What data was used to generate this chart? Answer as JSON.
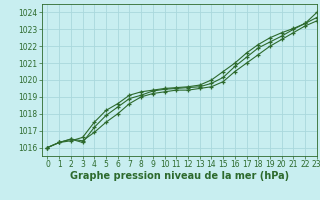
{
  "title": "Graphe pression niveau de la mer (hPa)",
  "background_color": "#c8eef0",
  "plot_bg_color": "#c8eef0",
  "grid_color": "#aad8dc",
  "line_color": "#2d6a2d",
  "marker_color": "#2d6a2d",
  "xlim": [
    -0.5,
    23
  ],
  "ylim": [
    1015.5,
    1024.5
  ],
  "yticks": [
    1016,
    1017,
    1018,
    1019,
    1020,
    1021,
    1022,
    1023,
    1024
  ],
  "xticks": [
    0,
    1,
    2,
    3,
    4,
    5,
    6,
    7,
    8,
    9,
    10,
    11,
    12,
    13,
    14,
    15,
    16,
    17,
    18,
    19,
    20,
    21,
    22,
    23
  ],
  "line1_x": [
    0,
    1,
    2,
    3,
    4,
    5,
    6,
    7,
    8,
    9,
    10,
    11,
    12,
    13,
    14,
    15,
    16,
    17,
    18,
    19,
    20,
    21,
    22,
    23
  ],
  "line1_y": [
    1016.0,
    1016.3,
    1016.5,
    1016.4,
    1016.9,
    1017.5,
    1018.0,
    1018.6,
    1019.0,
    1019.2,
    1019.3,
    1019.4,
    1019.4,
    1019.5,
    1019.6,
    1019.9,
    1020.5,
    1021.0,
    1021.5,
    1022.0,
    1022.4,
    1022.8,
    1023.2,
    1023.5
  ],
  "line2_x": [
    0,
    1,
    2,
    3,
    4,
    5,
    6,
    7,
    8,
    9,
    10,
    11,
    12,
    13,
    14,
    15,
    16,
    17,
    18,
    19,
    20,
    21,
    22,
    23
  ],
  "line2_y": [
    1016.0,
    1016.3,
    1016.5,
    1016.3,
    1017.2,
    1017.9,
    1018.4,
    1018.9,
    1019.1,
    1019.35,
    1019.45,
    1019.5,
    1019.55,
    1019.6,
    1019.8,
    1020.15,
    1020.8,
    1021.35,
    1021.9,
    1022.25,
    1022.6,
    1023.0,
    1023.35,
    1023.7
  ],
  "line3_x": [
    0,
    1,
    2,
    3,
    4,
    5,
    6,
    7,
    8,
    9,
    10,
    11,
    12,
    13,
    14,
    15,
    16,
    17,
    18,
    19,
    20,
    21,
    22,
    23
  ],
  "line3_y": [
    1016.0,
    1016.3,
    1016.4,
    1016.6,
    1017.5,
    1018.2,
    1018.6,
    1019.1,
    1019.3,
    1019.4,
    1019.5,
    1019.55,
    1019.6,
    1019.7,
    1020.0,
    1020.5,
    1021.0,
    1021.6,
    1022.1,
    1022.5,
    1022.8,
    1023.05,
    1023.35,
    1024.0
  ],
  "font_color": "#2d6a2d",
  "tick_fontsize": 5.5,
  "label_fontsize": 7
}
